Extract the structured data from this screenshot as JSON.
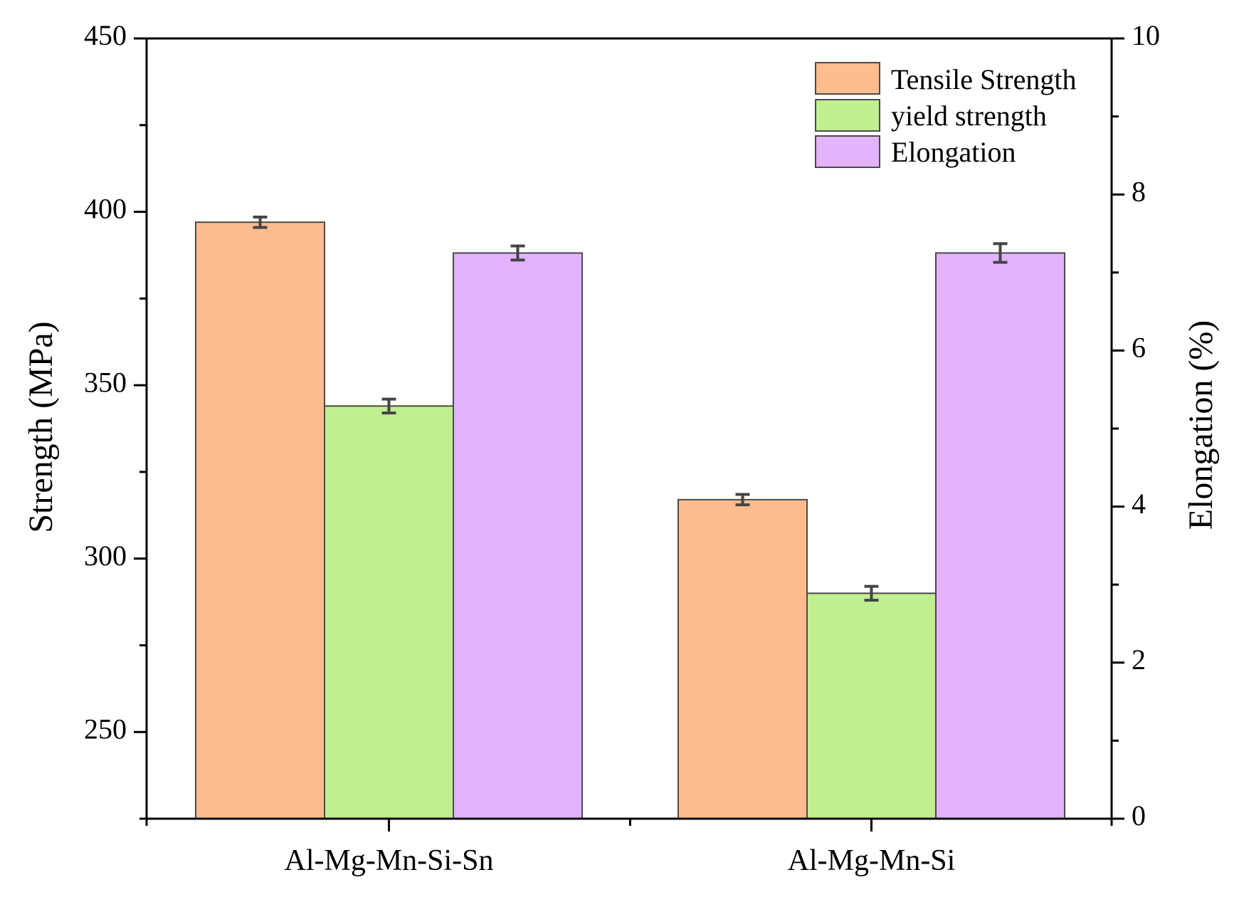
{
  "chart_data": {
    "type": "bar",
    "categories": [
      "Al-Mg-Mn-Si-Sn",
      "Al-Mg-Mn-Si"
    ],
    "series": [
      {
        "name": "Tensile Strength",
        "axis": "left",
        "color": "#ffbd8f",
        "values": [
          397,
          317
        ],
        "errors": [
          1.5,
          1.5
        ]
      },
      {
        "name": "yield strength",
        "axis": "left",
        "color": "#c0ef8f",
        "values": [
          344,
          290
        ],
        "errors": [
          2,
          2
        ]
      },
      {
        "name": "Elongation",
        "axis": "right",
        "color": "#e4b3fe",
        "values": [
          7.25,
          7.25
        ],
        "errors": [
          0.09,
          0.12
        ]
      }
    ],
    "ylabel_left": "Strength (MPa)",
    "ylabel_right": "Elongation (%)",
    "ylim_left": [
      225,
      450
    ],
    "ylim_right": [
      0,
      10
    ],
    "yticks_left": [
      250,
      300,
      350,
      400,
      450
    ],
    "yticks_right": [
      0,
      2,
      4,
      6,
      8,
      10
    ],
    "legend_position": "top-right",
    "grid": false
  }
}
